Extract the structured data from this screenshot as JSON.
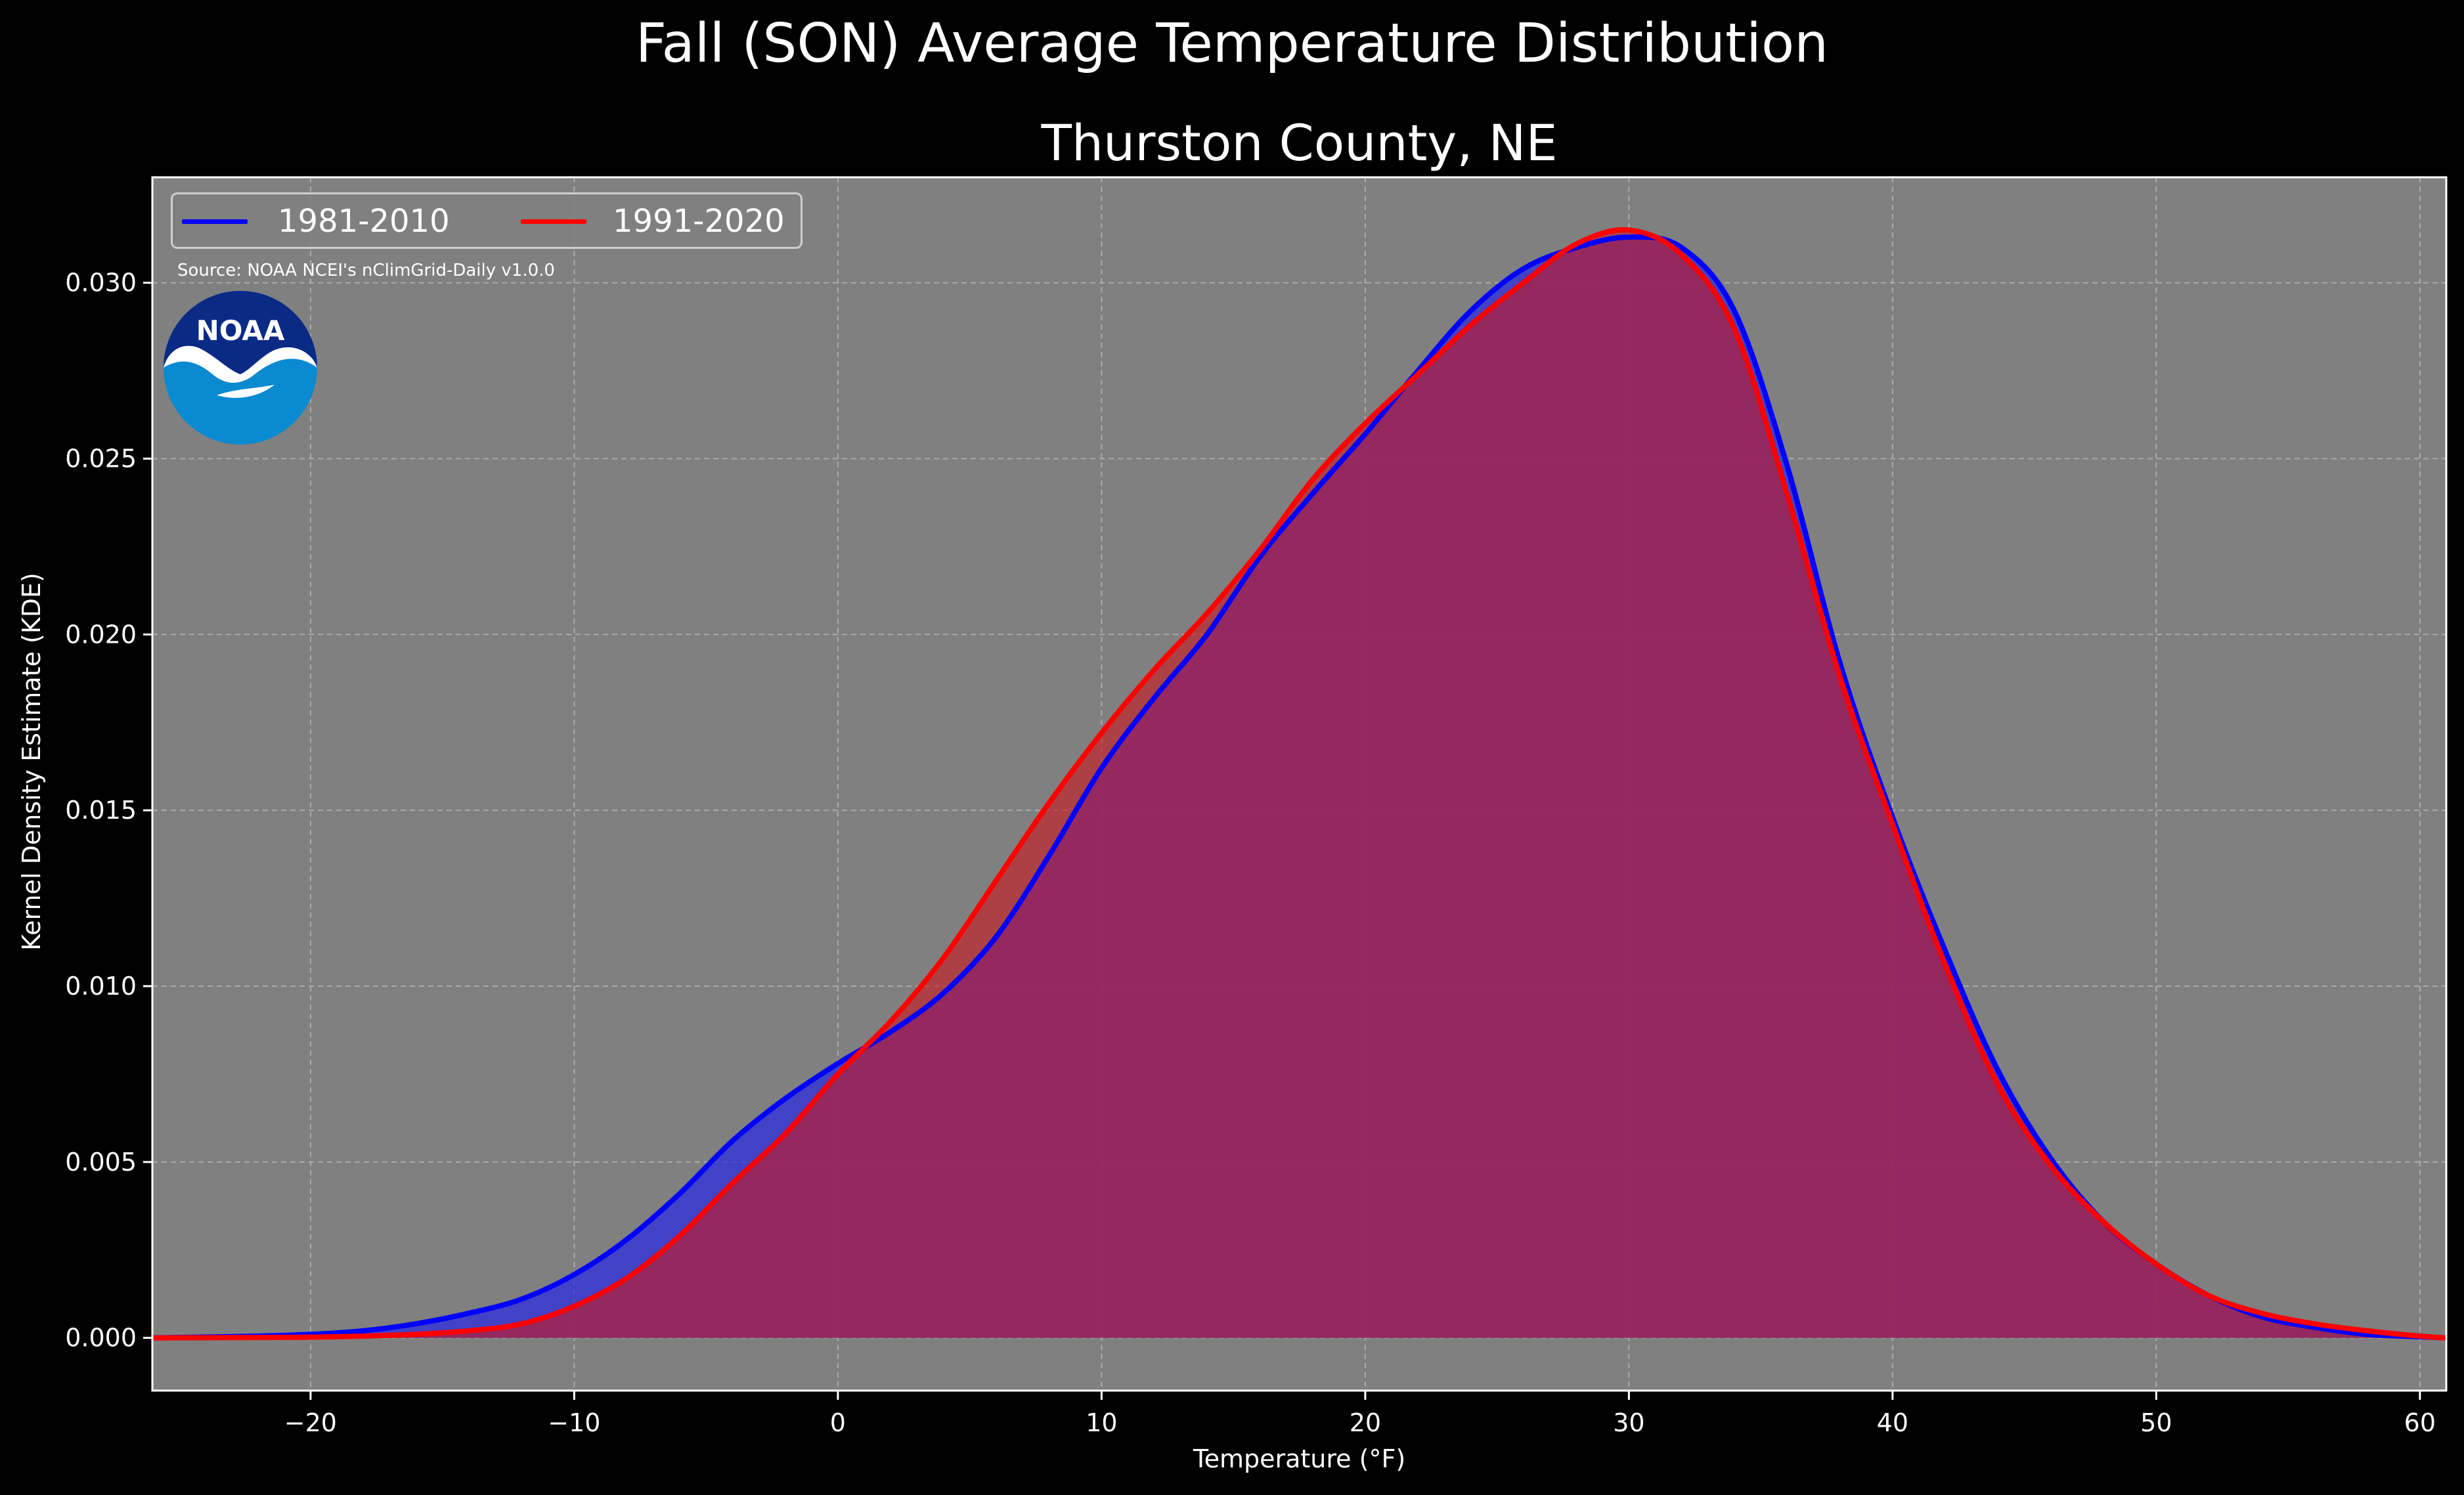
{
  "figure": {
    "suptitle": "Fall (SON) Average Temperature Distribution",
    "source": "Source: NOAA NCEI's nClimGrid-Daily v1.0.0",
    "logo_text": "NOAA"
  },
  "colors": {
    "background": "#000000",
    "plot_bg": "#808080",
    "grid": "#b8b8b8",
    "series_1981": "#0000ff",
    "series_1991": "#ff0000",
    "overlap_fill": "#9e1f5c",
    "text": "#ffffff"
  },
  "chart_data": {
    "type": "area",
    "title": "Thurston County, NE",
    "xlabel": "Temperature (°F)",
    "ylabel": "Kernel Density Estimate (KDE)",
    "xlim": [
      -26,
      61
    ],
    "ylim": [
      -0.0015,
      0.033
    ],
    "xticks": [
      -20,
      -10,
      0,
      10,
      20,
      30,
      40,
      50,
      60
    ],
    "xtick_labels": [
      "−20",
      "−10",
      "0",
      "10",
      "20",
      "30",
      "40",
      "50",
      "60"
    ],
    "yticks": [
      0.0,
      0.005,
      0.01,
      0.015,
      0.02,
      0.025,
      0.03
    ],
    "ytick_labels": [
      "0.000",
      "0.005",
      "0.010",
      "0.015",
      "0.020",
      "0.025",
      "0.030"
    ],
    "grid": true,
    "legend_position": "top-left",
    "series": [
      {
        "name": "1981-2010",
        "color": "#0000ff",
        "x": [
          -26,
          -22,
          -20,
          -18,
          -16,
          -14,
          -12,
          -10,
          -8,
          -6,
          -4,
          -2,
          0,
          2,
          4,
          6,
          8,
          10,
          12,
          14,
          16,
          18,
          20,
          22,
          24,
          26,
          28,
          30,
          32,
          34,
          36,
          38,
          40,
          42,
          44,
          46,
          48,
          50,
          52,
          54,
          56,
          58,
          60,
          61
        ],
        "values": [
          0.0,
          5e-05,
          0.0001,
          0.0002,
          0.0004,
          0.0007,
          0.0011,
          0.0018,
          0.0028,
          0.0041,
          0.0056,
          0.0068,
          0.0078,
          0.0087,
          0.0098,
          0.0114,
          0.0137,
          0.0162,
          0.0182,
          0.02,
          0.0222,
          0.024,
          0.0257,
          0.0275,
          0.0292,
          0.0304,
          0.031,
          0.0313,
          0.031,
          0.0292,
          0.0248,
          0.0192,
          0.0148,
          0.011,
          0.0076,
          0.0051,
          0.0033,
          0.0021,
          0.0012,
          0.0006,
          0.0003,
          0.0001,
          3e-05,
          0.0
        ]
      },
      {
        "name": "1991-2020",
        "color": "#ff0000",
        "x": [
          -26,
          -22,
          -20,
          -18,
          -16,
          -14,
          -12,
          -10,
          -8,
          -6,
          -4,
          -2,
          0,
          2,
          4,
          6,
          8,
          10,
          12,
          14,
          16,
          18,
          20,
          22,
          24,
          26,
          28,
          30,
          32,
          34,
          36,
          38,
          40,
          42,
          44,
          46,
          48,
          50,
          52,
          54,
          56,
          58,
          60,
          61
        ],
        "values": [
          0.0,
          1e-05,
          2e-05,
          5e-05,
          0.0001,
          0.0002,
          0.0004,
          0.0009,
          0.0017,
          0.0029,
          0.0044,
          0.0058,
          0.0075,
          0.009,
          0.0108,
          0.013,
          0.0152,
          0.0172,
          0.019,
          0.0206,
          0.0224,
          0.0244,
          0.026,
          0.0274,
          0.0288,
          0.03,
          0.0311,
          0.0315,
          0.0308,
          0.0287,
          0.024,
          0.0188,
          0.0146,
          0.0106,
          0.0072,
          0.0049,
          0.0033,
          0.0021,
          0.0012,
          0.0007,
          0.0004,
          0.0002,
          5e-05,
          0.0
        ]
      }
    ]
  }
}
